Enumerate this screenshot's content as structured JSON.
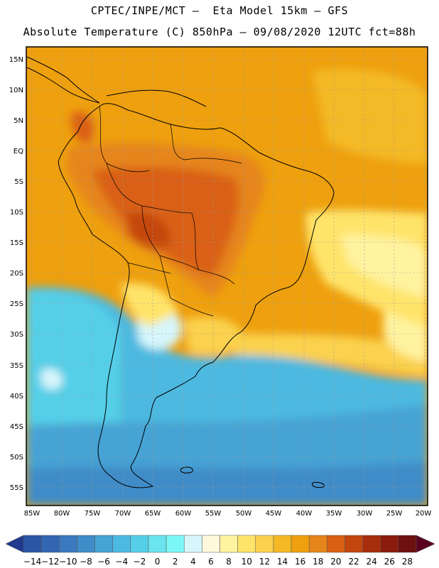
{
  "header": {
    "line1": "CPTEC/INPE/MCT –  Eta Model 15km – GFS",
    "line2": "Absolute Temperature (C) 850hPa – 09/08/2020 12UTC fct=88h"
  },
  "map": {
    "lat_labels": [
      "15N",
      "10N",
      "5N",
      "EQ",
      "5S",
      "10S",
      "15S",
      "20S",
      "25S",
      "30S",
      "35S",
      "40S",
      "45S",
      "50S",
      "55S"
    ],
    "lon_labels": [
      "85W",
      "80W",
      "75W",
      "70W",
      "65W",
      "60W",
      "55W",
      "50W",
      "45W",
      "40W",
      "35W",
      "30W",
      "25W",
      "20W"
    ]
  },
  "colorbar": {
    "labels": [
      "−14",
      "−12",
      "−10",
      "−8",
      "−6",
      "−4",
      "−2",
      "0",
      "2",
      "4",
      "6",
      "8",
      "10",
      "12",
      "14",
      "16",
      "18",
      "20",
      "22",
      "24",
      "26",
      "28"
    ],
    "colors": [
      "#1f3a8f",
      "#2a55a5",
      "#3266b3",
      "#3b79be",
      "#3f8cc8",
      "#46a3d4",
      "#4db9e0",
      "#55cfe8",
      "#6ae4ee",
      "#7cf7f7",
      "#d6f6fb",
      "#fff8dd",
      "#fff3a0",
      "#ffe46a",
      "#fbd24e",
      "#f4b925",
      "#eea00e",
      "#e6851a",
      "#d96112",
      "#c4460f",
      "#a72e0c",
      "#8b1c0c",
      "#6e0f10",
      "#5a0021"
    ]
  }
}
